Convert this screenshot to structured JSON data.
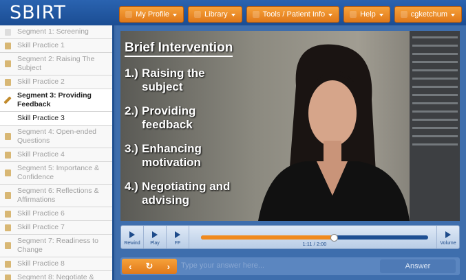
{
  "header": {
    "logo": "SBIRT",
    "menu": [
      "My Profile",
      "Library",
      "Tools / Patient Info",
      "Help",
      "cgketchum"
    ]
  },
  "sidebar": {
    "items": [
      {
        "label": "Segment 1: Screening",
        "state": "done"
      },
      {
        "label": "Skill Practice 1",
        "state": "locked"
      },
      {
        "label": "Segment 2: Raising The Subject",
        "state": "locked"
      },
      {
        "label": "Skill Practice 2",
        "state": "locked"
      },
      {
        "label": "Segment 3: Providing Feedback",
        "state": "current"
      },
      {
        "label": "Skill Practice 3",
        "state": "open"
      },
      {
        "label": "Segment 4: Open-ended Questions",
        "state": "locked"
      },
      {
        "label": "Skill Practice 4",
        "state": "locked"
      },
      {
        "label": "Segment 5: Importance & Confidence",
        "state": "locked"
      },
      {
        "label": "Segment 6: Reflections & Affirmations",
        "state": "locked"
      },
      {
        "label": "Skill Practice 6",
        "state": "locked"
      },
      {
        "label": "Skill Practice 7",
        "state": "locked"
      },
      {
        "label": "Segment 7: Readiness to Change",
        "state": "locked"
      },
      {
        "label": "Skill Practice 8",
        "state": "locked"
      },
      {
        "label": "Segment 8: Negotiate &",
        "state": "locked"
      }
    ]
  },
  "video": {
    "slide": {
      "title": "Brief Intervention",
      "points": [
        {
          "num": "1.)",
          "text": "Raising the subject"
        },
        {
          "num": "2.)",
          "text": "Providing feedback"
        },
        {
          "num": "3.)",
          "text": "Enhancing motivation"
        },
        {
          "num": "4.)",
          "text": "Negotiating and advising"
        }
      ]
    },
    "controls": {
      "rewind": "Rewind",
      "play": "Play",
      "ff": "FF",
      "time": "1:11 / 2:00",
      "volume": "Volume"
    }
  },
  "answer": {
    "placeholder": "Type your answer here...",
    "button": "Answer"
  }
}
